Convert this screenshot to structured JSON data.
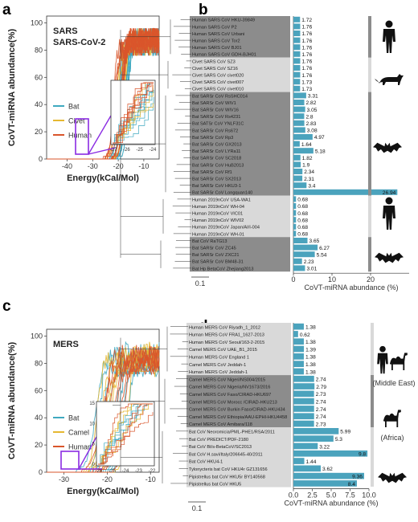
{
  "chart_data": [
    {
      "type": "line",
      "panel_letter": "a",
      "xlabel": "Energy(kCal/Mol)",
      "ylabel": "CoVT-miRNA abundance(%)",
      "title_lines": [
        "SARS",
        "SARS-CoV-2"
      ],
      "xlim": [
        -48,
        -4
      ],
      "ylim": [
        0,
        105
      ],
      "xticks": [
        "-40",
        "-30",
        "-20",
        "-10"
      ],
      "yticks": [
        "0",
        "20",
        "40",
        "60",
        "80",
        "100"
      ],
      "inset_xticks": [
        "-27",
        "-26",
        "-25",
        "-24"
      ],
      "legend_position": "middle-left",
      "series": [
        {
          "name": "Bat",
          "color": "#3fa9c0",
          "count": 14
        },
        {
          "name": "Civet",
          "color": "#e6b832",
          "count": 5
        },
        {
          "name": "Human",
          "color": "#d9552b",
          "count": 12
        }
      ]
    },
    {
      "type": "bar",
      "panel_letter": "b",
      "xlabel": "CoVT-miRNA abundance (%)",
      "xlim": [
        0,
        30
      ],
      "xticks": [
        "0",
        "10",
        "20"
      ],
      "scale_label": "0.1",
      "bar_color": "#4ba3bd",
      "groups": [
        {
          "shade": "#8c8c8c",
          "host": "human"
        },
        {
          "shade": "#d9d9d9",
          "host": "civet"
        },
        {
          "shade": "#8c8c8c",
          "host": "bat"
        },
        {
          "shade": "#d9d9d9",
          "host": "human"
        },
        {
          "shade": "#8c8c8c",
          "host": "bat"
        }
      ],
      "categories": [
        "Human SARS CoV HKU-39849",
        "Human SARS CoV P2",
        "Human SARS CoV Urbani",
        "Human SARS CoV Tor2",
        "Human SARS CoV BJ01",
        "Human SARS CoV GDH-BJH01",
        "Civet SARS CoV SZ3",
        "Civet SARS CoV SZ16",
        "Civet SARS CoV civet020",
        "Civet SARS CoV civet007",
        "Civet SARS CoV civet010",
        "Bat SARSr CoV RsSHC014",
        "Bat SARSr CoV WIV1",
        "Bat SARSr CoV WIV16",
        "Bat SARSr CoV Rs4231",
        "Bat SATSr CoV YNLF31C",
        "Bat SARSr CoV Rs672",
        "Bat SARSr CoV Rp3",
        "Bat SARSr CoV GX2013",
        "Bat SARSr CoV LYRa11",
        "Bat SARSr CoV SC2018",
        "Bat SARSr CoV HuB2013",
        "Bat SARSr CoV Rf1",
        "Bat SARSr CoV SX2013",
        "Bat SARSr CoV HKU3-1",
        "Bat SARSr CoV Longquan140",
        "Human 2019nCoV USA-WA1",
        "Human 2019nCoV WH-04",
        "Human 2019nCoV VIC01",
        "Human 2019nCoV WIV02",
        "Human 2019nCoV Japan/AI/I-004",
        "Human 2019nCoV WH-01",
        "Bat CoV RaTG13",
        "Bat SARSr CoV ZC45",
        "Bat SARSr CoV ZXC21",
        "Bat SARSr CoV BM48-31",
        "Bat Hp BetaCoV Zhejiang2013"
      ],
      "group_sizes": [
        6,
        5,
        15,
        6,
        5
      ],
      "values": [
        1.72,
        1.76,
        1.76,
        1.76,
        1.76,
        1.76,
        1.76,
        1.76,
        1.76,
        1.73,
        1.73,
        3.31,
        2.82,
        3.05,
        2.8,
        2.83,
        3.08,
        4.97,
        1.64,
        5.18,
        1.82,
        1.9,
        2.34,
        2.31,
        3.4,
        26.94,
        0.68,
        0.68,
        0.68,
        0.68,
        0.68,
        0.68,
        3.65,
        6.27,
        5.54,
        2.23,
        3.01
      ],
      "value_labels": [
        "1.72",
        "1.76",
        "1.76",
        "1.76",
        "1.76",
        "1.76",
        "1.76",
        "1.76",
        "1.76",
        "1.73",
        "1.73",
        "3.31",
        "2.82",
        "3.05",
        "2.8",
        "2.83",
        "3.08",
        "4.97",
        "1.64",
        "5.18",
        "1.82",
        "1.9",
        "2.34",
        "2.31",
        "3.4",
        "26.94",
        "0.68",
        "0.68",
        "0.68",
        "0.68",
        "0.68",
        "0.68",
        "3.65",
        "6.27",
        "5.54",
        "2.23",
        "3.01"
      ]
    },
    {
      "type": "line",
      "panel_letter": "c",
      "xlabel": "Energy(kCal/Mol)",
      "ylabel": "CoVT-miRNA abundance(%)",
      "title_lines": [
        "MERS"
      ],
      "xlim": [
        -34,
        -8
      ],
      "ylim": [
        0,
        105
      ],
      "xticks": [
        "-30",
        "-20",
        "-10"
      ],
      "yticks": [
        "0",
        "20",
        "40",
        "60",
        "80",
        "100"
      ],
      "inset_xticks": [
        "-26",
        "-25",
        "-24",
        "-23",
        "-22"
      ],
      "inset_yticks": [
        "0",
        "5",
        "10",
        "15"
      ],
      "legend_position": "middle-left",
      "series": [
        {
          "name": "Bat",
          "color": "#3fa9c0",
          "count": 8
        },
        {
          "name": "Camel",
          "color": "#e6b832",
          "count": 6
        },
        {
          "name": "Human",
          "color": "#d9552b",
          "count": 7
        }
      ]
    },
    {
      "type": "bar",
      "panel_letter": "d",
      "xlabel": "CoVT-miRNA abundance (%)",
      "xlim": [
        0,
        10
      ],
      "xticks": [
        "0.0",
        "2.5",
        "5.0",
        "7.5",
        "10.0"
      ],
      "scale_label": "0.1",
      "bar_color": "#4ba3bd",
      "region_labels": [
        "(Middle East)",
        "(Africa)"
      ],
      "categories": [
        "Human MERS CoV Riyadh_1_2012",
        "Human MERS CoV FRA1_1627-2013",
        "Human MERS CoV Seoul/163-2-2015",
        "Camel MERS CoV UAE_B1_2015",
        "Human MERS CoV England 1",
        "Camel MERS CoV Jeddah-1",
        "Human MERS CoV Jeddah-1",
        "Camel MERS CoV Nigeri/NS004/2015",
        "Camel MERS CoV Nigeria/NV1673/2016",
        "Camel MERS CoV Faso/CIRAD-HKU697",
        "Camel MERS CoV Morocc /CIRAD-HKU213",
        "Camel MERS CoV Burkin Faso/CIRAD-HKU434",
        "Camel MERS CoV Ethiopia/AAU-EPHI-HKU4458",
        "Camel MERS CoV Amibara/118",
        "Bat CoV Neoromicia/PML-PHE1/RSA/2011",
        "Bat CoV PREDICT/PDF-2180",
        "Bat CoV Bt/s-BetaCoV/SC2013",
        "Bat CoV H.savi/Italy/206645-40/2011",
        "Bat CoV HKU4-1",
        "Tylonycteris bat CoV HKU4r GZ131656",
        "Pipistrellus bat CoV HKU5r BY140568",
        "Pipistrellus bat CoV HKU5"
      ],
      "group_sizes": [
        7,
        7,
        8
      ],
      "values": [
        1.38,
        0.62,
        1.38,
        1.39,
        1.38,
        1.38,
        1.38,
        2.74,
        2.79,
        2.73,
        2.74,
        2.74,
        2.74,
        2.73,
        5.99,
        5.3,
        3.22,
        9.8,
        1.44,
        3.62,
        9.36,
        8.4
      ],
      "value_labels": [
        "1.38",
        "0.62",
        "1.38",
        "1.39",
        "1.38",
        "1.38",
        "1.38",
        "2.74",
        "2.79",
        "2.73",
        "2.74",
        "2.74",
        "2.74",
        "2.73",
        "5.99",
        "5.3",
        "3.22",
        "9.8",
        "1.44",
        "3.62",
        "9.36",
        "8.4"
      ]
    }
  ]
}
